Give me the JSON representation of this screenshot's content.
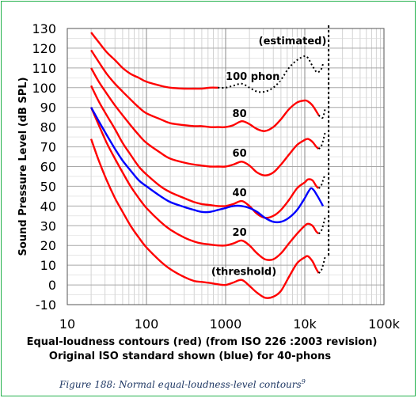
{
  "chart_data": {
    "type": "line",
    "title": "",
    "xlabel_line1": "Equal-loudness contours (red)  (from ISO 226 :2003 revision)",
    "xlabel_line2": "Original  ISO standard shown (blue) for 40-phons",
    "ylabel": "Sound Pressure Level (dB SPL)",
    "x_scale": "log",
    "xlim": [
      10,
      100000
    ],
    "ylim": [
      -10,
      130
    ],
    "x_ticks": [
      10,
      100,
      1000,
      10000,
      100000
    ],
    "x_tick_labels": [
      "10",
      "100",
      "1000",
      "10k",
      "100k"
    ],
    "y_ticks": [
      -10,
      0,
      10,
      20,
      30,
      40,
      50,
      60,
      70,
      80,
      90,
      100,
      110,
      120,
      130
    ],
    "grid": true,
    "colors": {
      "iso226": "#ff0000",
      "original_iso": "#0000ff",
      "estimated": "#000000",
      "frame": "#22b14c",
      "caption": "#1f3864"
    },
    "series": [
      {
        "name": "(threshold)",
        "color": "#ff0000",
        "points": [
          [
            20,
            74
          ],
          [
            25,
            63
          ],
          [
            31.5,
            53
          ],
          [
            40,
            44
          ],
          [
            50,
            37
          ],
          [
            63,
            30
          ],
          [
            80,
            24
          ],
          [
            100,
            19
          ],
          [
            150,
            12
          ],
          [
            200,
            8
          ],
          [
            300,
            4
          ],
          [
            400,
            2
          ],
          [
            500,
            1.5
          ],
          [
            630,
            1
          ],
          [
            800,
            0.3
          ],
          [
            1000,
            0
          ],
          [
            1250,
            1.2
          ],
          [
            1600,
            2.5
          ],
          [
            2000,
            -0.5
          ],
          [
            2500,
            -4
          ],
          [
            3150,
            -6.5
          ],
          [
            4000,
            -6
          ],
          [
            5000,
            -3
          ],
          [
            6300,
            4
          ],
          [
            8000,
            11
          ],
          [
            10000,
            14
          ],
          [
            11000,
            14.5
          ],
          [
            12500,
            12
          ],
          [
            14000,
            8
          ],
          [
            15000,
            6
          ]
        ],
        "estimated": [
          [
            15000,
            6
          ],
          [
            16000,
            7
          ],
          [
            17000,
            10
          ],
          [
            18000,
            14
          ]
        ]
      },
      {
        "name": "20",
        "color": "#ff0000",
        "points": [
          [
            20,
            90
          ],
          [
            25,
            81
          ],
          [
            31.5,
            72
          ],
          [
            40,
            64
          ],
          [
            50,
            57
          ],
          [
            63,
            50
          ],
          [
            80,
            44
          ],
          [
            100,
            39
          ],
          [
            150,
            32
          ],
          [
            200,
            28
          ],
          [
            300,
            24
          ],
          [
            400,
            22
          ],
          [
            500,
            21
          ],
          [
            630,
            20.5
          ],
          [
            800,
            20
          ],
          [
            1000,
            20
          ],
          [
            1250,
            21
          ],
          [
            1600,
            22.5
          ],
          [
            2000,
            20
          ],
          [
            2500,
            16
          ],
          [
            3150,
            13
          ],
          [
            4000,
            13
          ],
          [
            5000,
            16
          ],
          [
            6300,
            21
          ],
          [
            8000,
            26
          ],
          [
            10000,
            30
          ],
          [
            11000,
            31
          ],
          [
            12500,
            30
          ],
          [
            14000,
            27
          ],
          [
            15000,
            26
          ]
        ],
        "estimated": [
          [
            15000,
            26
          ],
          [
            16000,
            27
          ],
          [
            17000,
            30
          ],
          [
            18000,
            34
          ]
        ]
      },
      {
        "name": "40",
        "color": "#ff0000",
        "points": [
          [
            20,
            101
          ],
          [
            25,
            93
          ],
          [
            31.5,
            86
          ],
          [
            40,
            79
          ],
          [
            50,
            72
          ],
          [
            63,
            66
          ],
          [
            80,
            60
          ],
          [
            100,
            56
          ],
          [
            150,
            50
          ],
          [
            200,
            47
          ],
          [
            300,
            44
          ],
          [
            400,
            42
          ],
          [
            500,
            41
          ],
          [
            630,
            40.5
          ],
          [
            800,
            40
          ],
          [
            1000,
            40
          ],
          [
            1250,
            41
          ],
          [
            1600,
            42.5
          ],
          [
            2000,
            40
          ],
          [
            2500,
            36
          ],
          [
            3150,
            34
          ],
          [
            4000,
            35
          ],
          [
            5000,
            38
          ],
          [
            6300,
            43
          ],
          [
            8000,
            49
          ],
          [
            10000,
            52
          ],
          [
            11000,
            53.5
          ],
          [
            12500,
            53
          ],
          [
            14000,
            50
          ],
          [
            15000,
            49
          ]
        ],
        "estimated": [
          [
            15000,
            49
          ],
          [
            16000,
            50
          ],
          [
            17000,
            53
          ],
          [
            18000,
            56
          ]
        ]
      },
      {
        "name": "60",
        "color": "#ff0000",
        "points": [
          [
            20,
            110
          ],
          [
            25,
            103
          ],
          [
            31.5,
            97
          ],
          [
            40,
            91
          ],
          [
            50,
            86
          ],
          [
            63,
            81
          ],
          [
            80,
            76
          ],
          [
            100,
            72
          ],
          [
            150,
            67
          ],
          [
            200,
            64
          ],
          [
            300,
            62
          ],
          [
            400,
            61
          ],
          [
            500,
            60.5
          ],
          [
            630,
            60
          ],
          [
            800,
            60
          ],
          [
            1000,
            60
          ],
          [
            1250,
            61
          ],
          [
            1600,
            62.5
          ],
          [
            2000,
            60.5
          ],
          [
            2500,
            57
          ],
          [
            3150,
            55.5
          ],
          [
            4000,
            57
          ],
          [
            5000,
            61
          ],
          [
            6300,
            66
          ],
          [
            8000,
            71
          ],
          [
            10000,
            73.5
          ],
          [
            11000,
            74
          ],
          [
            12500,
            72.5
          ],
          [
            14000,
            70
          ],
          [
            15000,
            69
          ]
        ],
        "estimated": [
          [
            15000,
            69
          ],
          [
            16000,
            70
          ],
          [
            17000,
            73
          ],
          [
            18000,
            77
          ]
        ]
      },
      {
        "name": "80",
        "color": "#ff0000",
        "points": [
          [
            20,
            119
          ],
          [
            25,
            113
          ],
          [
            31.5,
            107
          ],
          [
            40,
            102
          ],
          [
            50,
            98
          ],
          [
            63,
            94
          ],
          [
            80,
            90
          ],
          [
            100,
            87
          ],
          [
            150,
            84
          ],
          [
            200,
            82
          ],
          [
            300,
            81
          ],
          [
            400,
            80.5
          ],
          [
            500,
            80.5
          ],
          [
            630,
            80
          ],
          [
            800,
            80
          ],
          [
            1000,
            80
          ],
          [
            1250,
            81
          ],
          [
            1600,
            83
          ],
          [
            2000,
            81.5
          ],
          [
            2500,
            79
          ],
          [
            3150,
            78
          ],
          [
            4000,
            80
          ],
          [
            5000,
            84
          ],
          [
            6300,
            89
          ],
          [
            8000,
            92.5
          ],
          [
            10000,
            93.5
          ],
          [
            11000,
            93
          ],
          [
            12500,
            91
          ],
          [
            14000,
            88
          ],
          [
            15000,
            86
          ]
        ],
        "estimated": [
          [
            15000,
            86
          ],
          [
            16000,
            85
          ],
          [
            17000,
            85
          ],
          [
            18000,
            89
          ]
        ]
      },
      {
        "name": "100 phon",
        "color": "#ff0000",
        "points": [
          [
            20,
            128
          ],
          [
            25,
            123
          ],
          [
            31.5,
            118
          ],
          [
            40,
            114
          ],
          [
            50,
            110
          ],
          [
            63,
            107
          ],
          [
            80,
            105
          ],
          [
            100,
            103
          ],
          [
            150,
            101
          ],
          [
            200,
            100
          ],
          [
            300,
            99.5
          ],
          [
            400,
            99.5
          ],
          [
            500,
            99.5
          ],
          [
            630,
            100
          ],
          [
            800,
            100
          ]
        ],
        "estimated": [
          [
            800,
            100
          ],
          [
            1000,
            100
          ],
          [
            1250,
            101
          ],
          [
            1600,
            102
          ],
          [
            2000,
            100
          ],
          [
            2500,
            98
          ],
          [
            3150,
            98
          ],
          [
            4000,
            100
          ],
          [
            5000,
            104
          ],
          [
            6300,
            110
          ],
          [
            8000,
            114
          ],
          [
            10000,
            116
          ],
          [
            11000,
            115
          ],
          [
            12500,
            111
          ],
          [
            14000,
            108
          ],
          [
            15000,
            108
          ],
          [
            16000,
            109
          ],
          [
            17000,
            112
          ]
        ]
      },
      {
        "name": "40-phon original ISO",
        "color": "#0000ff",
        "points": [
          [
            20,
            90
          ],
          [
            25,
            83
          ],
          [
            31.5,
            76
          ],
          [
            40,
            69
          ],
          [
            50,
            63
          ],
          [
            63,
            58
          ],
          [
            80,
            53
          ],
          [
            100,
            50
          ],
          [
            150,
            45
          ],
          [
            200,
            42
          ],
          [
            300,
            39.5
          ],
          [
            400,
            38
          ],
          [
            500,
            37
          ],
          [
            630,
            37
          ],
          [
            800,
            38
          ],
          [
            1000,
            39
          ],
          [
            1250,
            40
          ],
          [
            1600,
            40
          ],
          [
            2000,
            39
          ],
          [
            2500,
            37
          ],
          [
            3150,
            34
          ],
          [
            4000,
            32
          ],
          [
            5000,
            32
          ],
          [
            6300,
            34
          ],
          [
            8000,
            38
          ],
          [
            10000,
            44
          ],
          [
            11000,
            47
          ],
          [
            12000,
            49
          ],
          [
            13000,
            48
          ],
          [
            14000,
            46
          ],
          [
            15000,
            44
          ],
          [
            17000,
            40
          ]
        ]
      }
    ],
    "annotations": [
      {
        "text": "(estimated)",
        "x": 7000,
        "y": 122
      },
      {
        "text": "100 phon",
        "x": 2200,
        "y": 104
      },
      {
        "text": "80",
        "x": 1500,
        "y": 85
      },
      {
        "text": "60",
        "x": 1500,
        "y": 65
      },
      {
        "text": "40",
        "x": 1500,
        "y": 45
      },
      {
        "text": "20",
        "x": 1500,
        "y": 25
      },
      {
        "text": "(threshold)",
        "x": 1700,
        "y": 5
      }
    ],
    "vertical_dashed_x": 20000
  },
  "caption": {
    "text": "Figure 188: Normal equal-loudness-level contours",
    "superscript": "9"
  }
}
